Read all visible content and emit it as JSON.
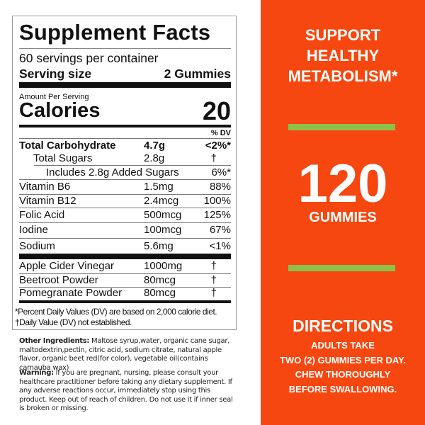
{
  "label": {
    "title": "Supplement Facts",
    "servings": "60 servings per container",
    "serving_size_label": "Serving size",
    "serving_size_value": "2 Gummies",
    "amount_per_serving": "Amount Per Serving",
    "calories_label": "Calories",
    "calories_value": "20",
    "dv_header": "% DV",
    "rows": [
      {
        "name": "Total Carbohydrate",
        "amount": "4.7g",
        "dv": "<2%*"
      },
      {
        "name": "Total Sugars",
        "amount": "2.8g",
        "dv": "†"
      },
      {
        "name": "Includes 2.8g Added Sugars",
        "amount": "",
        "dv": "6%*"
      },
      {
        "name": "Vitamin B6",
        "amount": "1.5mg",
        "dv": "88%"
      },
      {
        "name": "Vitamin B12",
        "amount": "2.4mcg",
        "dv": "100%"
      },
      {
        "name": "Folic Acid",
        "amount": "500mcg",
        "dv": "125%"
      },
      {
        "name": "Iodine",
        "amount": "100mcg",
        "dv": "67%"
      },
      {
        "name": "Sodium",
        "amount": "5.6mg",
        "dv": "<1%"
      },
      {
        "name": "Apple Cider Vinegar",
        "amount": "1000mg",
        "dv": "†"
      },
      {
        "name": "Beetroot Powder",
        "amount": "80mcg",
        "dv": "†"
      },
      {
        "name": "Pomegranate Powder",
        "amount": "80mcg",
        "dv": "†"
      }
    ],
    "footnote1": "*Percent Daily Values (DV) are based on  2,000 calorie diet.",
    "footnote2": "†Daily Value (DV) not established."
  },
  "other_ingredients": {
    "label": "Other Ingredients:",
    "text": " Maltose syrup,water, organic cane sugar, maltodextrin,pectin, citric acid, sodium citrate, natural apple flavor, organic beet red(for color), vegetable oil(contains carnauba wax)"
  },
  "warning": {
    "label": "Warning:",
    "text": " If you are pregnant, nursing, please consult your healthcare practitioner before taking any dietary supplement. If any adverse reactions occur, immediately stop using this product. Keep out of reach of children. Do not use it if inner seal is broken or missing."
  },
  "panel": {
    "headline": [
      "SUPPORT",
      "HEALTHY",
      "METABOLISM*"
    ],
    "count": "120",
    "count_unit": "GUMMIES",
    "directions_title": "DIRECTIONS",
    "directions": [
      "ADULTS TAKE",
      "TWO (2) GUMMIES PER DAY.",
      "CHEW THOROUGHLY",
      "BEFORE SWALLOWING."
    ],
    "colors": {
      "background": "#f5470f",
      "accent_bar": "#8cc04a",
      "text": "#ffffff"
    }
  }
}
